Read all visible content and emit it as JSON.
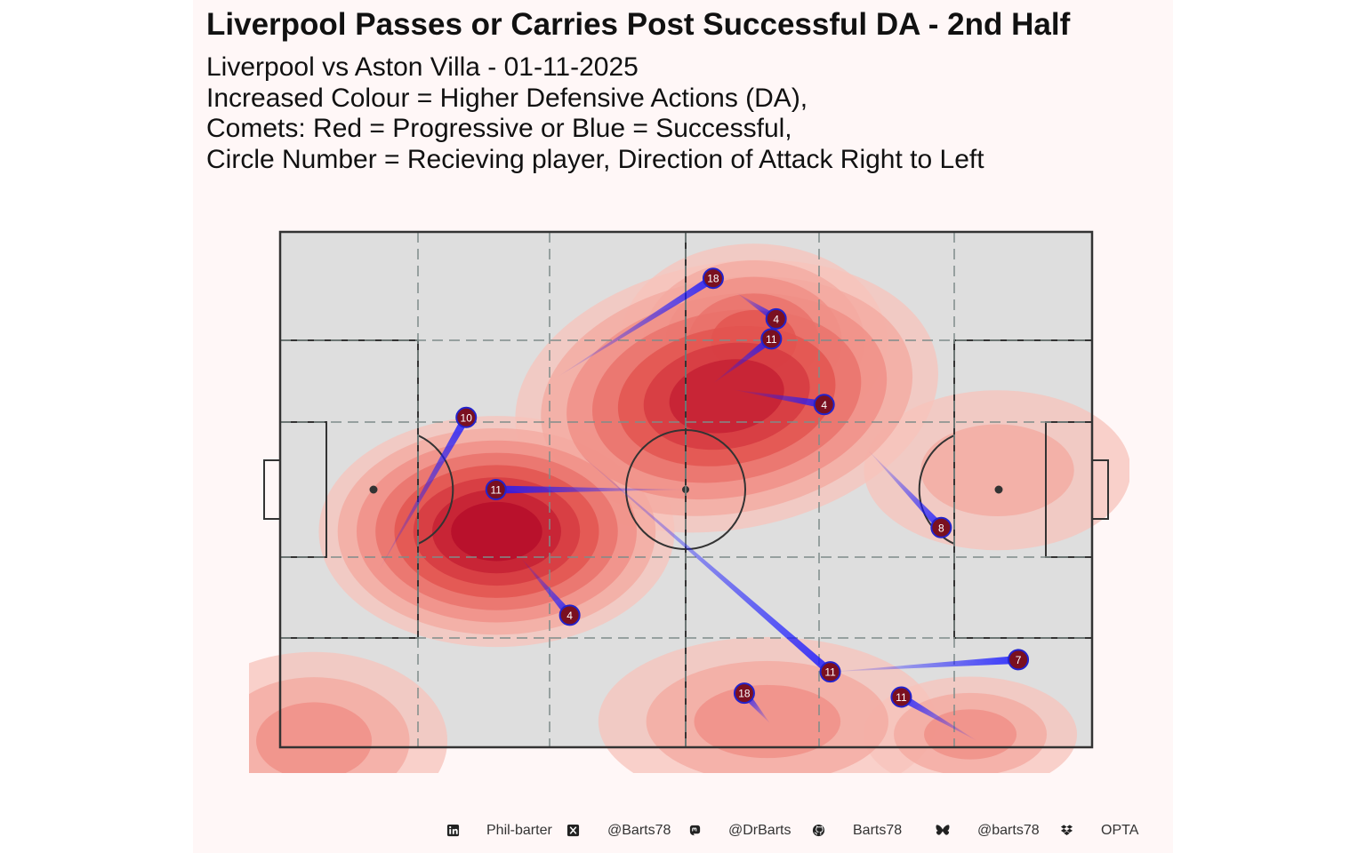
{
  "title": "Liverpool Passes or Carries Post Successful DA - 2nd Half",
  "subtitle_lines": [
    "Liverpool vs Aston Villa - 01-11-2025",
    "Increased Colour = Higher Defensive Actions (DA),",
    "Comets: Red = Progressive or Blue = Successful,",
    "Circle Number = Recieving player, Direction of Attack Right to Left"
  ],
  "colors": {
    "panel_bg": "#fff7f7",
    "pitch_fill": "#dedede",
    "pitch_lines": "#333333",
    "zone_lines": "#7f8c8a",
    "comet": "#1a1aff",
    "marker_fill": "#7a1020",
    "marker_stroke": "#2222cc",
    "density_ramp": [
      "#f7c3bb",
      "#f4aaa1",
      "#f08f86",
      "#ea716a",
      "#e2524f",
      "#d53840",
      "#c41f33",
      "#b50c2a"
    ]
  },
  "chart_data": {
    "type": "scatter",
    "description_source": "pitch plot with density contours of defensive actions and comet lines",
    "pitch": {
      "length": 120,
      "width": 80,
      "grid": true,
      "grid_style": "dashed"
    },
    "density_hotspots": [
      {
        "x": 32,
        "y": 46.5,
        "strength": 1.0
      },
      {
        "x": 66,
        "y": 25.5,
        "strength": 0.9
      },
      {
        "x": 70,
        "y": 17,
        "strength": 0.6
      },
      {
        "x": 72,
        "y": 76,
        "strength": 0.4
      },
      {
        "x": 102,
        "y": 78,
        "strength": 0.35
      },
      {
        "x": 106,
        "y": 37,
        "strength": 0.3
      },
      {
        "x": 5,
        "y": 79,
        "strength": 0.35
      }
    ],
    "series": [
      {
        "type": "comets",
        "points": [
          {
            "x_start": 41,
            "y_start": 22.5,
            "x_end": 64,
            "y_end": 7.2,
            "player": "18"
          },
          {
            "x_start": 67.5,
            "y_start": 9.5,
            "x_end": 73.3,
            "y_end": 13.5,
            "player": "4"
          },
          {
            "x_start": 64,
            "y_start": 23.5,
            "x_end": 72.6,
            "y_end": 16.6,
            "player": "11"
          },
          {
            "x_start": 67,
            "y_start": 24.5,
            "x_end": 80.4,
            "y_end": 26.8,
            "player": "4"
          },
          {
            "x_start": 14.6,
            "y_start": 52.5,
            "x_end": 27.5,
            "y_end": 28.8,
            "player": "10"
          },
          {
            "x_start": 60,
            "y_start": 40,
            "x_end": 31.9,
            "y_end": 40,
            "player": "11"
          },
          {
            "x_start": 35.5,
            "y_start": 50.5,
            "x_end": 42.8,
            "y_end": 59.5,
            "player": "4"
          },
          {
            "x_start": 86.9,
            "y_start": 33.9,
            "x_end": 97.7,
            "y_end": 45.9,
            "player": "8"
          },
          {
            "x_start": 43.8,
            "y_start": 34,
            "x_end": 81.3,
            "y_end": 68.3,
            "player": "11"
          },
          {
            "x_start": 81.3,
            "y_start": 68.3,
            "x_end": 109.1,
            "y_end": 66.4,
            "player": "7"
          },
          {
            "x_start": 72.4,
            "y_start": 76.3,
            "x_end": 68.6,
            "y_end": 71.6,
            "player": "18"
          },
          {
            "x_start": 103,
            "y_start": 79,
            "x_end": 91.8,
            "y_end": 72.2,
            "player": "11"
          }
        ]
      }
    ]
  },
  "footer": [
    {
      "icon": "linkedin-icon",
      "text": "Phil-barter"
    },
    {
      "icon": "x-twitter-icon",
      "text": "@Barts78"
    },
    {
      "icon": "mastodon-icon",
      "text": "@DrBarts"
    },
    {
      "icon": "github-icon",
      "text": "Barts78"
    },
    {
      "icon": "bluesky-icon",
      "text": "@barts78"
    },
    {
      "icon": "dropbox-icon",
      "text": "OPTA"
    }
  ]
}
